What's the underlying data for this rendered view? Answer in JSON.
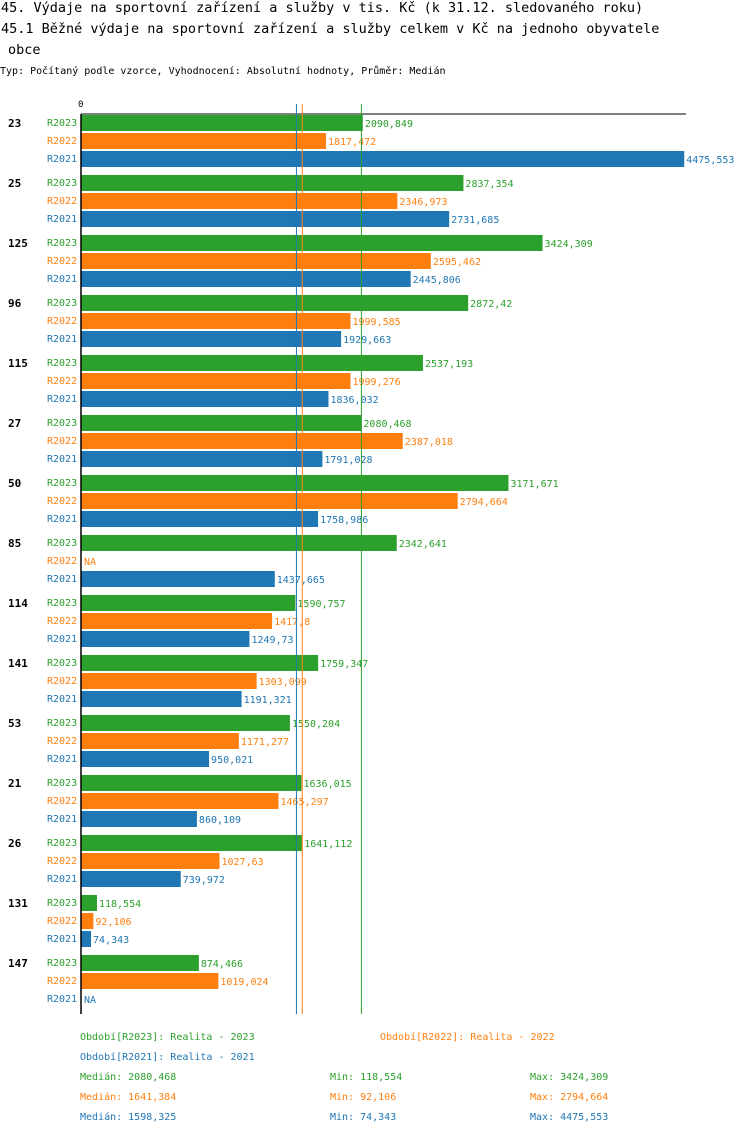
{
  "header": {
    "title": "45. Výdaje na sportovní zařízení a služby v tis. Kč (k 31.12. sledovaného roku)",
    "subtitle_line1": "45.1 Běžné výdaje na sportovní zařízení a služby celkem v Kč na jednoho obyvatele",
    "subtitle_line2": "obce",
    "type_line": "Typ: Počítaný podle vzorce, Vyhodnocení: Absolutní hodnoty, Průměr: Medián"
  },
  "colors": {
    "R2023": "#2ca02c",
    "R2022": "#ff7f0e",
    "R2021": "#1f77b4"
  },
  "chart_data": {
    "type": "bar",
    "orientation": "horizontal",
    "axis_zero_label": "0",
    "xlim": [
      0,
      4800
    ],
    "series_labels": [
      "R2023",
      "R2022",
      "R2021"
    ],
    "categories": [
      "23",
      "25",
      "125",
      "96",
      "115",
      "27",
      "50",
      "85",
      "114",
      "141",
      "53",
      "21",
      "26",
      "131",
      "147"
    ],
    "series": [
      {
        "name": "R2023",
        "values": [
          2090.849,
          2837.354,
          3424.309,
          2872.42,
          2537.193,
          2080.468,
          3171.671,
          2342.641,
          1590.757,
          1759.347,
          1550.204,
          1636.015,
          1641.112,
          118.554,
          874.466
        ],
        "labels": [
          "2090,849",
          "2837,354",
          "3424,309",
          "2872,42",
          "2537,193",
          "2080,468",
          "3171,671",
          "2342,641",
          "1590,757",
          "1759,347",
          "1550,204",
          "1636,015",
          "1641,112",
          "118,554",
          "874,466"
        ]
      },
      {
        "name": "R2022",
        "values": [
          1817.472,
          2346.973,
          2595.462,
          1999.585,
          1999.276,
          2387.018,
          2794.664,
          null,
          1417.8,
          1303.099,
          1171.277,
          1465.297,
          1027.63,
          92.106,
          1019.024
        ],
        "labels": [
          "1817,472",
          "2346,973",
          "2595,462",
          "1999,585",
          "1999,276",
          "2387,018",
          "2794,664",
          "NA",
          "1417,8",
          "1303,099",
          "1171,277",
          "1465,297",
          "1027,63",
          "92,106",
          "1019,024"
        ]
      },
      {
        "name": "R2021",
        "values": [
          4475.553,
          2731.685,
          2445.806,
          1929.663,
          1836.032,
          1791.028,
          1758.986,
          1437.665,
          1249.73,
          1191.321,
          950.021,
          860.109,
          739.972,
          74.343,
          null
        ],
        "labels": [
          "4475,553",
          "2731,685",
          "2445,806",
          "1929,663",
          "1836,032",
          "1791,028",
          "1758,986",
          "1437,665",
          "1249,73",
          "1191,321",
          "950,021",
          "860,109",
          "739,972",
          "74,343",
          "NA"
        ]
      }
    ],
    "median_lines": [
      {
        "series": "R2023",
        "value": 2080.468
      },
      {
        "series": "R2022",
        "value": 1641.384
      },
      {
        "series": "R2021",
        "value": 1598.325
      }
    ],
    "legend": [
      {
        "series": "R2023",
        "text": "Období[R2023]: Realita - 2023"
      },
      {
        "series": "R2022",
        "text": "Období[R2022]: Realita - 2022"
      },
      {
        "series": "R2021",
        "text": "Období[R2021]: Realita - 2021"
      }
    ],
    "stats": [
      {
        "series": "R2023",
        "median": "Medián: 2080,468",
        "min": "Min: 118,554",
        "max": "Max: 3424,309"
      },
      {
        "series": "R2022",
        "median": "Medián: 1641,384",
        "min": "Min: 92,106",
        "max": "Max: 2794,664"
      },
      {
        "series": "R2021",
        "median": "Medián: 1598,325",
        "min": "Min: 74,343",
        "max": "Max: 4475,553"
      }
    ]
  }
}
